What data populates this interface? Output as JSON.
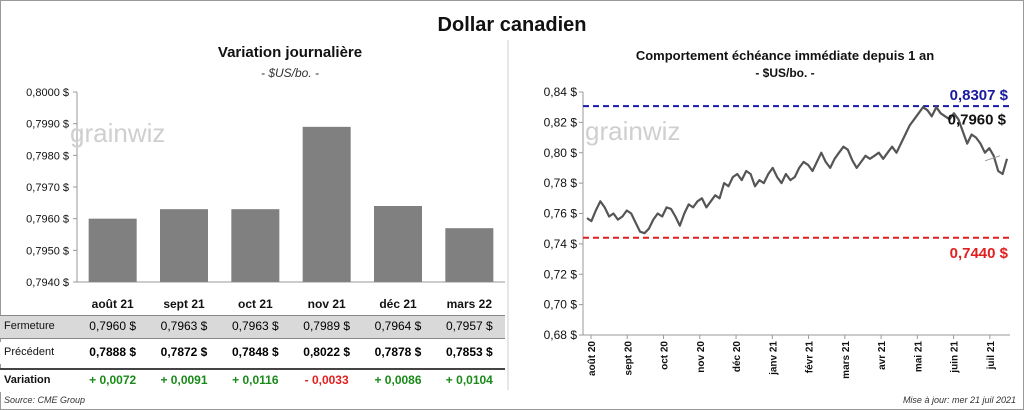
{
  "title": "Dollar canadien",
  "left_chart": {
    "title": "Variation  journalière",
    "subtitle": "- $US/bo. -",
    "watermark": "grainwiz"
  },
  "right_chart": {
    "title": "Comportement échéance immédiate depuis 1 an",
    "subtitle": "- $US/bo. -",
    "watermark": "grainwiz"
  },
  "table": {
    "rows": [
      {
        "label": "Fermeture",
        "values": [
          "0,7960  $",
          "0,7963  $",
          "0,7963  $",
          "0,7989  $",
          "0,7964  $",
          "0,7957  $"
        ]
      },
      {
        "label": "Précédent",
        "values": [
          "0,7888  $",
          "0,7872  $",
          "0,7848  $",
          "0,8022  $",
          "0,7878  $",
          "0,7853  $"
        ]
      },
      {
        "label": "Variation",
        "values": [
          "+ 0,0072",
          "+ 0,0091",
          "+ 0,0116",
          "- 0,0033",
          "+ 0,0086",
          "+ 0,0104"
        ]
      }
    ],
    "colors": {
      "positive": "#1a8a1a",
      "negative": "#e02020"
    }
  },
  "footer": {
    "source": "Source: CME Group",
    "updated": "Mise à jour: mer 21 juil 2021"
  },
  "chart_data": [
    {
      "type": "bar",
      "categories": [
        "août 21",
        "sept 21",
        "oct 21",
        "nov 21",
        "déc 21",
        "mars 22"
      ],
      "values": [
        0.796,
        0.7963,
        0.7963,
        0.7989,
        0.7964,
        0.7957
      ],
      "ylim": [
        0.794,
        0.8
      ],
      "yticks": [
        "0,7940 $",
        "0,7950 $",
        "0,7960 $",
        "0,7970 $",
        "0,7980 $",
        "0,7990 $",
        "0,8000 $"
      ],
      "color": "#808080"
    },
    {
      "type": "line",
      "ylim": [
        0.68,
        0.84
      ],
      "yticks": [
        "0,68 $",
        "0,70 $",
        "0,72 $",
        "0,74 $",
        "0,76 $",
        "0,78 $",
        "0,80 $",
        "0,82 $",
        "0,84 $"
      ],
      "xticks": [
        "août 20",
        "sept 20",
        "oct 20",
        "nov 20",
        "déc 20",
        "janv 21",
        "févr 21",
        "mars 21",
        "avr 21",
        "mai 21",
        "juin 21",
        "juil 21"
      ],
      "y": [
        0.757,
        0.755,
        0.762,
        0.768,
        0.764,
        0.758,
        0.76,
        0.756,
        0.758,
        0.762,
        0.76,
        0.754,
        0.748,
        0.747,
        0.75,
        0.756,
        0.76,
        0.758,
        0.764,
        0.763,
        0.758,
        0.752,
        0.76,
        0.766,
        0.764,
        0.768,
        0.77,
        0.764,
        0.768,
        0.772,
        0.77,
        0.78,
        0.778,
        0.784,
        0.786,
        0.782,
        0.788,
        0.786,
        0.778,
        0.782,
        0.78,
        0.786,
        0.79,
        0.784,
        0.78,
        0.786,
        0.782,
        0.784,
        0.79,
        0.794,
        0.792,
        0.788,
        0.794,
        0.8,
        0.794,
        0.79,
        0.796,
        0.8,
        0.804,
        0.802,
        0.795,
        0.79,
        0.794,
        0.798,
        0.796,
        0.798,
        0.8,
        0.796,
        0.8,
        0.804,
        0.8,
        0.806,
        0.812,
        0.818,
        0.822,
        0.826,
        0.83,
        0.828,
        0.824,
        0.83,
        0.826,
        0.824,
        0.822,
        0.826,
        0.822,
        0.814,
        0.806,
        0.812,
        0.81,
        0.806,
        0.8,
        0.803,
        0.798,
        0.788,
        0.786,
        0.796
      ],
      "color": "#555555",
      "high": {
        "value": 0.8307,
        "label": "0,8307  $",
        "color": "#1a1aa0"
      },
      "low": {
        "value": 0.744,
        "label": "0,7440  $",
        "color": "#e02020"
      },
      "last": {
        "value": 0.796,
        "label": "0,7960 $"
      }
    }
  ]
}
